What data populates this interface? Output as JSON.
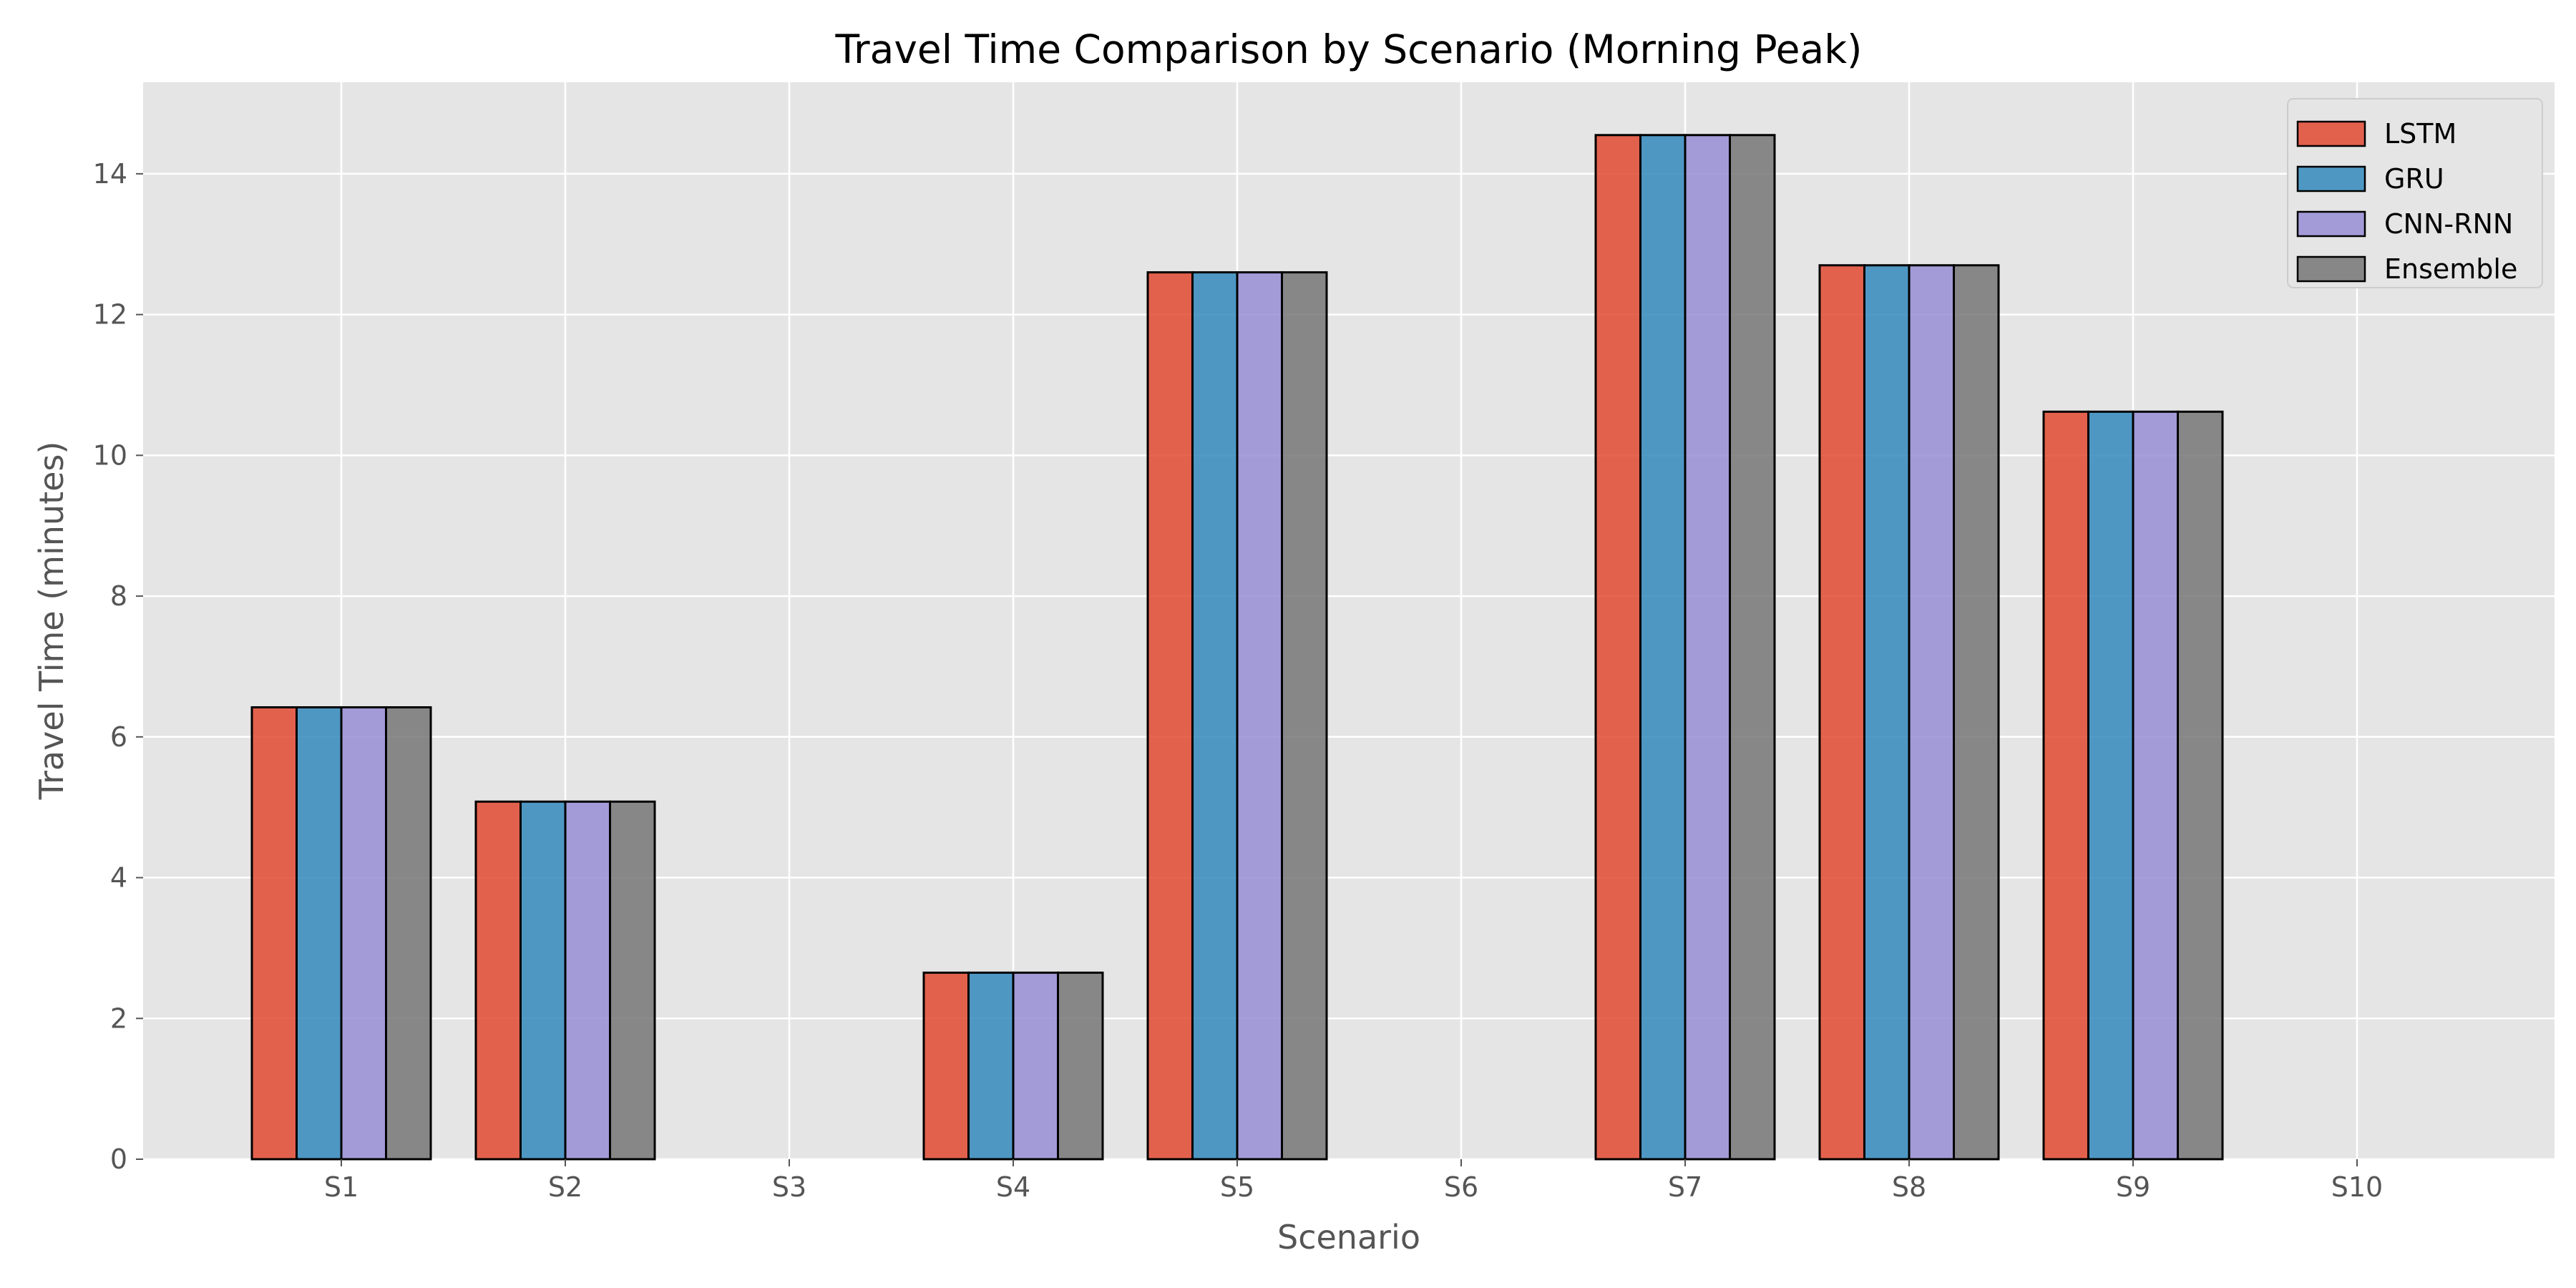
{
  "chart_data": {
    "type": "bar",
    "title": "Travel Time Comparison by Scenario (Morning Peak)",
    "xlabel": "Scenario",
    "ylabel": "Travel Time (minutes)",
    "categories": [
      "S1",
      "S2",
      "S3",
      "S4",
      "S5",
      "S6",
      "S7",
      "S8",
      "S9",
      "S10"
    ],
    "ylim": [
      0,
      15.3
    ],
    "yticks": [
      0,
      2,
      4,
      6,
      8,
      10,
      12,
      14
    ],
    "grid": true,
    "legend_position": "top-right",
    "series": [
      {
        "name": "LSTM",
        "color": "#E24A33",
        "values": [
          6.42,
          5.08,
          0,
          2.65,
          12.6,
          0,
          14.55,
          12.7,
          10.62,
          0
        ]
      },
      {
        "name": "GRU",
        "color": "#348ABD",
        "values": [
          6.42,
          5.08,
          0,
          2.65,
          12.6,
          0,
          14.55,
          12.7,
          10.62,
          0
        ]
      },
      {
        "name": "CNN-RNN",
        "color": "#988ED5",
        "values": [
          6.42,
          5.08,
          0,
          2.65,
          12.6,
          0,
          14.55,
          12.7,
          10.62,
          0
        ]
      },
      {
        "name": "Ensemble",
        "color": "#777777",
        "values": [
          6.42,
          5.08,
          0,
          2.65,
          12.6,
          0,
          14.55,
          12.7,
          10.62,
          0
        ]
      }
    ]
  }
}
